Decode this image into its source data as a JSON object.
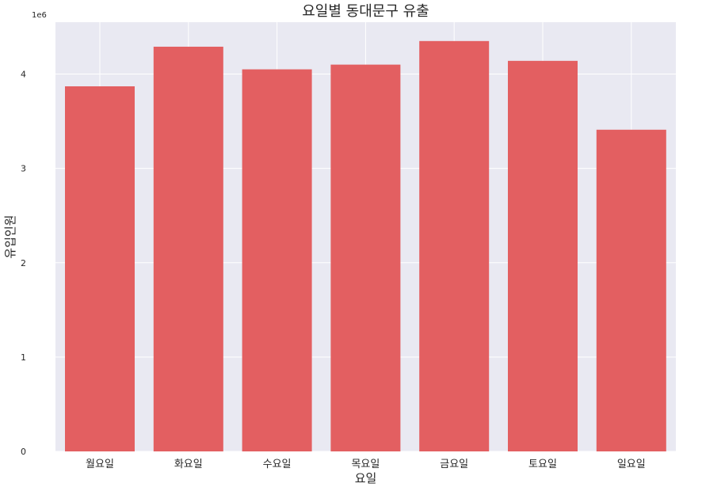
{
  "chart_data": {
    "type": "bar",
    "title": "요일별 동대문구 유출",
    "xlabel": "요일",
    "ylabel": "유입인원",
    "y_offset_label": "1e6",
    "categories": [
      "월요일",
      "화요일",
      "수요일",
      "목요일",
      "금요일",
      "토요일",
      "일요일"
    ],
    "values": [
      3870000,
      4290000,
      4050000,
      4100000,
      4350000,
      4140000,
      3410000
    ],
    "ylim": [
      0,
      4550000
    ],
    "yticks": [
      0,
      1000000,
      2000000,
      3000000,
      4000000
    ],
    "ytick_labels": [
      "0",
      "1",
      "2",
      "3",
      "4"
    ],
    "bar_color": "#e35f61",
    "background_color": "#e9e9f2",
    "grid_color": "#ffffff",
    "grid": true
  }
}
